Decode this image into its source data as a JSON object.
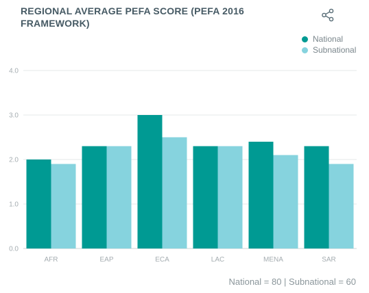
{
  "title": "REGIONAL AVERAGE PEFA SCORE (PEFA 2016 FRAMEWORK)",
  "share_icon": "share-icon",
  "footer_text": "National = 80 | Subnational = 60",
  "colors": {
    "national": "#009a93",
    "subnational": "#86d3de",
    "grid": "#e4e8ea",
    "axis": "#cdd3d6"
  },
  "chart_data": {
    "type": "bar",
    "title": "REGIONAL AVERAGE PEFA SCORE (PEFA 2016 FRAMEWORK)",
    "categories": [
      "AFR",
      "EAP",
      "ECA",
      "LAC",
      "MENA",
      "SAR"
    ],
    "series": [
      {
        "name": "National",
        "values": [
          2.0,
          2.3,
          3.0,
          2.3,
          2.4,
          2.3
        ]
      },
      {
        "name": "Subnational",
        "values": [
          1.9,
          2.3,
          2.5,
          2.3,
          2.1,
          1.9
        ]
      }
    ],
    "ylim": [
      0,
      4
    ],
    "yticks": [
      "0.0",
      "1.0",
      "2.0",
      "3.0",
      "4.0"
    ],
    "grid": true,
    "legend_position": "top-right",
    "xlabel": "",
    "ylabel": ""
  }
}
